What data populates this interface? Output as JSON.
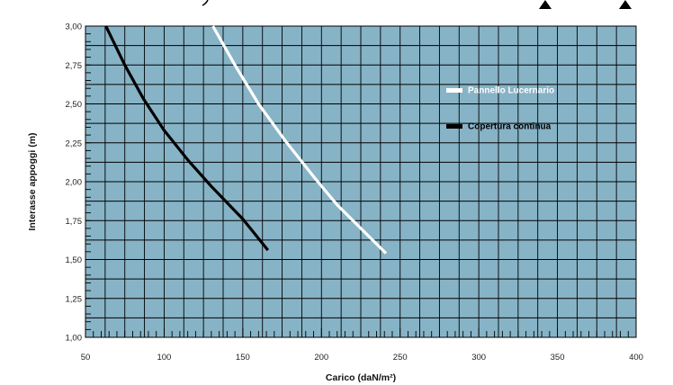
{
  "chart_data": {
    "type": "line",
    "title": "",
    "xlabel": "Carico (daN/m²)",
    "ylabel": "Interasse appoggi (m)",
    "xlim": [
      50,
      400
    ],
    "ylim": [
      1.0,
      3.0
    ],
    "x_ticks": [
      "50",
      "100",
      "150",
      "200",
      "250",
      "300",
      "350",
      "400"
    ],
    "y_ticks": [
      "1,00",
      "1,25",
      "1,50",
      "1,75",
      "2,00",
      "2,25",
      "2,50",
      "2,75",
      "3,00"
    ],
    "grid": true,
    "background": "#87b3c6",
    "legend_position": "right",
    "series": [
      {
        "name": "Pannello Lucernario",
        "color": "#ffffff",
        "points": [
          [
            131,
            3.0
          ],
          [
            145,
            2.75
          ],
          [
            160,
            2.5
          ],
          [
            178,
            2.25
          ],
          [
            196,
            2.02
          ],
          [
            210,
            1.85
          ],
          [
            223,
            1.72
          ],
          [
            241,
            1.54
          ]
        ]
      },
      {
        "name": "Copertura continua",
        "color": "#000000",
        "points": [
          [
            63,
            3.0
          ],
          [
            75,
            2.75
          ],
          [
            87,
            2.53
          ],
          [
            100,
            2.33
          ],
          [
            115,
            2.14
          ],
          [
            130,
            1.97
          ],
          [
            150,
            1.76
          ],
          [
            166,
            1.56
          ]
        ]
      }
    ]
  }
}
